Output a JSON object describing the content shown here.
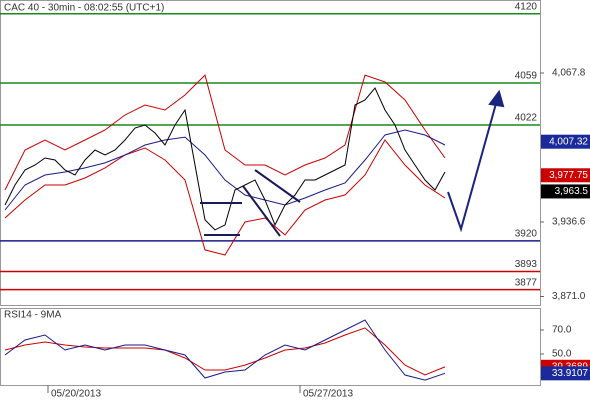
{
  "chart_data": [
    {
      "type": "line",
      "title": "CAC 40 - 30min - 08:02:55 (UTC+1)",
      "xlim": [
        -0.5,
        53.5
      ],
      "ylim": [
        3863.5,
        4132.1
      ],
      "yticks": [
        {
          "value": 4067.8,
          "label": "4,067.8"
        },
        {
          "value": 3936.6,
          "label": "3,936.6"
        },
        {
          "value": 3871.0,
          "label": "3,871.0"
        }
      ],
      "series": [
        {
          "color": "#cc0000",
          "x": [
            0,
            2,
            4,
            6,
            8,
            10,
            12,
            14,
            16,
            18,
            20,
            22,
            24,
            26,
            28,
            30,
            32,
            34,
            36,
            38,
            40,
            42,
            44
          ],
          "values": [
            3964.8,
            4000.0,
            4008.8,
            4000.0,
            4008.8,
            4017.6,
            4030.8,
            4039.6,
            4035.2,
            4048.4,
            4066.0,
            4000.0,
            3986.8,
            3986.8,
            3978.0,
            3986.8,
            3993.0,
            4004.4,
            4066.0,
            4059.9,
            4044.0,
            4017.6,
            3993.0
          ]
        },
        {
          "color": "#cc0000",
          "x": [
            0,
            2,
            4,
            6,
            8,
            10,
            12,
            14,
            16,
            18,
            20,
            22,
            24,
            26,
            28,
            30,
            32,
            34,
            36,
            38,
            40,
            42,
            44
          ],
          "values": [
            3940.1,
            3956.0,
            3969.2,
            3969.2,
            3975.3,
            3984.2,
            3995.6,
            4001.8,
            3991.2,
            3973.6,
            3912.0,
            3907.5,
            3936.6,
            3940.1,
            3925.2,
            3947.2,
            3956.0,
            3960.4,
            3978.0,
            4008.8,
            3986.8,
            3969.2,
            3957.7
          ]
        },
        {
          "color": "#1a1a8a",
          "x": [
            0,
            2,
            4,
            6,
            8,
            10,
            12,
            14,
            16,
            18,
            20,
            22,
            24,
            26,
            28,
            30,
            32,
            34,
            36,
            38,
            40,
            42,
            44
          ],
          "values": [
            3947.2,
            3969.2,
            3978.0,
            3980.6,
            3984.2,
            3988.6,
            3995.6,
            4004.4,
            4008.8,
            4011.4,
            3995.6,
            3973.6,
            3960.4,
            3956.0,
            3951.6,
            3957.7,
            3964.8,
            3970.9,
            3991.2,
            4013.2,
            4017.6,
            4013.2,
            4004.4
          ]
        },
        {
          "color": "#000000",
          "x": [
            0,
            1,
            2,
            3,
            4,
            5,
            6,
            7,
            8,
            9,
            10,
            11,
            12,
            13,
            14,
            15,
            16,
            17,
            18,
            19,
            20,
            21,
            22,
            23,
            24,
            25,
            26,
            27,
            28,
            29,
            30,
            31,
            32,
            33,
            34,
            35,
            36,
            37,
            38,
            39,
            40,
            41,
            42,
            43,
            44
          ],
          "values": [
            3951.6,
            3969.2,
            3982.4,
            3986.8,
            3993.0,
            3991.2,
            3982.4,
            3978.0,
            3991.2,
            4000.0,
            3995.6,
            4000.0,
            4008.8,
            4019.4,
            4022.0,
            4015.0,
            4004.4,
            4022.0,
            4035.2,
            3986.8,
            3938.4,
            3929.6,
            3934.0,
            3964.8,
            3969.2,
            3973.6,
            3956.0,
            3934.0,
            3951.6,
            3960.4,
            3973.6,
            3973.6,
            3978.0,
            3982.4,
            3986.8,
            4039.6,
            4044.0,
            4054.6,
            4035.2,
            4022.0,
            4000.0,
            3986.8,
            3973.6,
            3964.8,
            3980.6
          ]
        }
      ],
      "levels": [
        {
          "value": 4120,
          "color": "#1a8a1a"
        },
        {
          "value": 4059,
          "color": "#1a8a1a"
        },
        {
          "value": 4022,
          "color": "#1a8a1a"
        },
        {
          "value": 3920,
          "color": "#1a1a8a"
        },
        {
          "value": 3893,
          "color": "#cc0000"
        },
        {
          "value": 3877,
          "color": "#cc0000"
        }
      ],
      "badges": [
        {
          "value": 4007.32,
          "label": "4,007.32",
          "color": "#1a2a9a"
        },
        {
          "value": 3977.75,
          "label": "3,977.75",
          "color": "#cc0000"
        },
        {
          "value": 3963.5,
          "label": "3,963.5",
          "color": "#000000"
        }
      ]
    },
    {
      "type": "line",
      "title": "RSI14 - 9MA",
      "xlim": [
        -0.5,
        53.5
      ],
      "ylim": [
        24.2,
        88.3
      ],
      "yticks": [
        {
          "value": 70,
          "label": "70.0"
        },
        {
          "value": 50,
          "label": "50.0"
        }
      ],
      "xticks": [
        {
          "value": 4.3,
          "label": "05/20/2013"
        },
        {
          "value": 29.5,
          "label": "05/27/2013"
        }
      ],
      "series": [
        {
          "color": "#cc0000",
          "x": [
            0,
            2,
            4,
            6,
            8,
            10,
            12,
            14,
            16,
            18,
            20,
            22,
            24,
            26,
            28,
            30,
            32,
            34,
            36,
            38,
            40,
            42,
            44
          ],
          "values": [
            53.3,
            57.5,
            60.0,
            57.5,
            55.8,
            55.0,
            55.0,
            55.0,
            53.3,
            46.7,
            36.7,
            36.7,
            40.8,
            46.7,
            53.3,
            55.0,
            59.2,
            65.8,
            71.7,
            57.5,
            40.8,
            32.5,
            39.3
          ]
        },
        {
          "color": "#1a1a8a",
          "x": [
            0,
            2,
            4,
            6,
            8,
            10,
            12,
            14,
            16,
            18,
            20,
            22,
            24,
            26,
            28,
            30,
            32,
            34,
            36,
            38,
            40,
            42,
            44
          ],
          "values": [
            49.2,
            61.7,
            65.8,
            53.3,
            57.5,
            53.3,
            57.5,
            57.5,
            53.3,
            49.2,
            30.0,
            35.0,
            36.7,
            49.2,
            57.5,
            53.3,
            61.7,
            70.0,
            78.3,
            53.3,
            32.5,
            28.3,
            33.9
          ]
        }
      ],
      "badges": [
        {
          "value": 39.3689,
          "label": "39.3689",
          "color": "#cc0000"
        },
        {
          "value": 33.9107,
          "label": "33.9107",
          "color": "#1a2a9a"
        }
      ]
    }
  ]
}
